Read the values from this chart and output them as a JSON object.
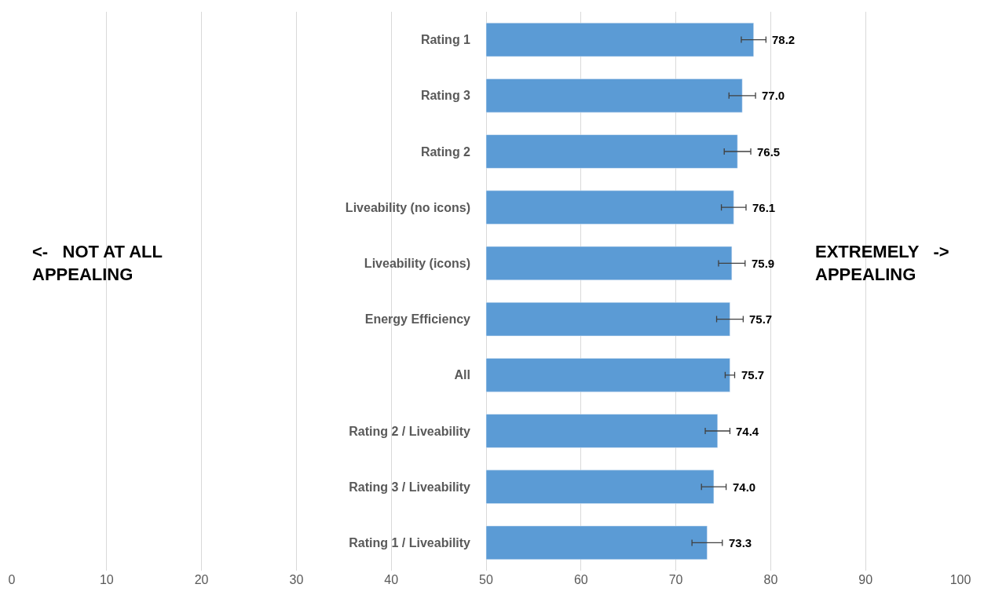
{
  "chart_data": {
    "type": "bar",
    "orientation": "horizontal",
    "categories": [
      "Rating 1",
      "Rating 3",
      "Rating 2",
      "Liveability (no icons)",
      "Liveability (icons)",
      "Energy Efficiency",
      "All",
      "Rating 2 / Liveability",
      "Rating 3 / Liveability",
      "Rating 1 / Liveability"
    ],
    "base": [
      50,
      50,
      50,
      50,
      50,
      50,
      50,
      50,
      50,
      50
    ],
    "values": [
      28.2,
      27.0,
      26.5,
      26.1,
      25.9,
      25.7,
      25.7,
      24.4,
      24.0,
      23.3
    ],
    "value_labels": [
      "78.2",
      "77.0",
      "76.5",
      "76.1",
      "75.9",
      "75.7",
      "75.7",
      "74.4",
      "74.0",
      "73.3"
    ],
    "errors": [
      1.3,
      1.4,
      1.4,
      1.3,
      1.4,
      1.4,
      0.5,
      1.3,
      1.3,
      1.6
    ],
    "color": "#5b9bd5",
    "xlim": [
      0,
      100
    ],
    "xticks": [
      0,
      10,
      20,
      30,
      40,
      50,
      60,
      70,
      80,
      90,
      100
    ],
    "grid": "x",
    "legend": false,
    "annotations": [
      "<-   NOT AT ALL\nAPPEALING",
      "EXTREMELY   ->\nAPPEALING"
    ]
  }
}
